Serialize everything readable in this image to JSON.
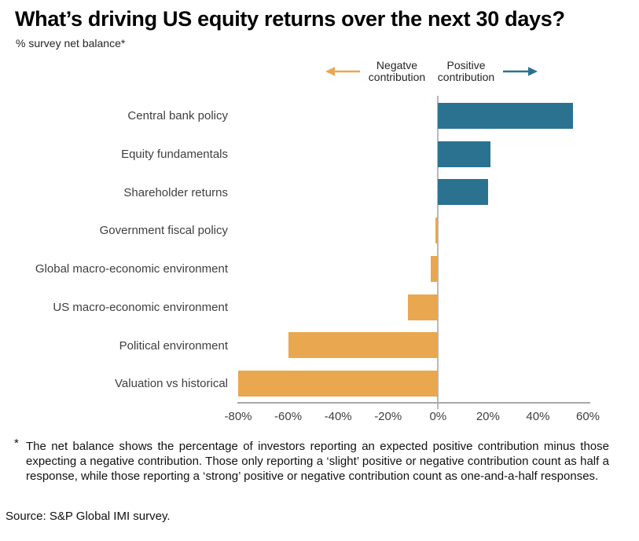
{
  "header": {
    "title": "What’s driving US equity returns over the next 30 days?",
    "subtitle": "% survey net balance*"
  },
  "legend": {
    "negative_label": "Negatve contribution",
    "positive_label": "Positive contribution"
  },
  "colors": {
    "positive": "#2B7291",
    "negative": "#E9A750",
    "axis": "#A8A8A8",
    "zero_line": "#B9B9B9",
    "label_text": "#3F3F3F"
  },
  "chart_data": {
    "type": "bar",
    "orientation": "horizontal",
    "title": "What’s driving US equity returns over the next 30 days?",
    "ylabel": "% survey net balance",
    "categories": [
      "Central bank policy",
      "Equity fundamentals",
      "Shareholder returns",
      "Government fiscal policy",
      "Global macro-economic environment",
      "US macro-economic environment",
      "Political environment",
      "Valuation vs historical"
    ],
    "values": [
      54,
      21,
      20,
      -1,
      -3,
      -12,
      -60,
      -80
    ],
    "xlim": [
      -80,
      60
    ],
    "tick_values": [
      -80,
      -60,
      -40,
      -20,
      0,
      20,
      40,
      60
    ],
    "x_ticks": [
      "-80%",
      "-60%",
      "-40%",
      "-20%",
      "0%",
      "20%",
      "40%",
      "60%"
    ],
    "grid": false,
    "legend_position": "top",
    "positive_color": "#2B7291",
    "negative_color": "#E9A750"
  },
  "footnote": {
    "marker": "*",
    "text": "The net balance shows the percentage of investors reporting an expected positive contribution minus those expecting a negative contribution. Those only reporting a ‘slight’ positive or negative contribution count as half a response, while those reporting a ‘strong’ positive or negative contribution count as one-and-a-half responses."
  },
  "source": "Source: S&P Global IMI survey."
}
